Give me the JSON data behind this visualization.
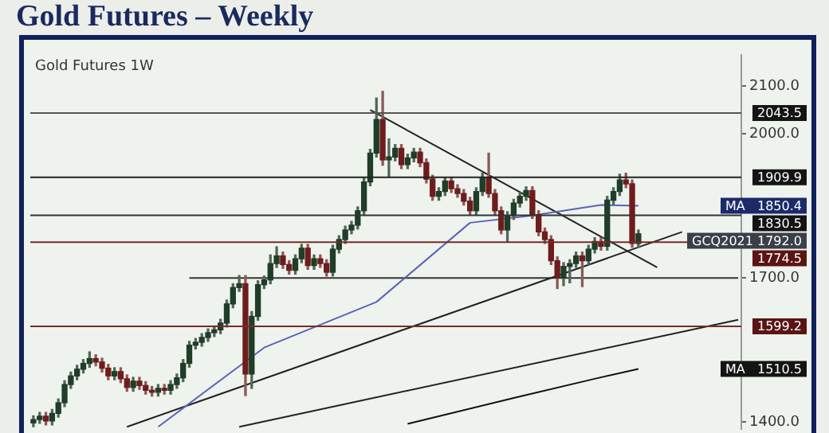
{
  "chart_data": {
    "type": "candlestick",
    "title": "Gold Futures – Weekly",
    "subtitle": "Gold Futures 1W",
    "categories": [
      null,
      null,
      null,
      null,
      null,
      null,
      null,
      null,
      null,
      null,
      null,
      null,
      null,
      null,
      null,
      null,
      null,
      null,
      null,
      null,
      null,
      null,
      null,
      null,
      null,
      null,
      null,
      null,
      null,
      null,
      null,
      null,
      null,
      null,
      null,
      null,
      null,
      null,
      null,
      null,
      null,
      null,
      null,
      null,
      null,
      null,
      null,
      null,
      null,
      null,
      null,
      null,
      null,
      null,
      null,
      null,
      null,
      null,
      null,
      null,
      null,
      null,
      null,
      null,
      null,
      null,
      null,
      null,
      null,
      null,
      null,
      null,
      null,
      null,
      null,
      null,
      null,
      null,
      null,
      null,
      null,
      null,
      null,
      null,
      null,
      null,
      null,
      null,
      null,
      null,
      null,
      null,
      null,
      null,
      null,
      null,
      null,
      null,
      null,
      null,
      null,
      null,
      null,
      null,
      null,
      null,
      null,
      null,
      null,
      null,
      null,
      null,
      null,
      null
    ],
    "ohlc": [
      [
        1398,
        1413,
        1390,
        1405
      ],
      [
        1405,
        1420,
        1397,
        1412
      ],
      [
        1412,
        1420,
        1394,
        1402
      ],
      [
        1402,
        1426,
        1394,
        1418
      ],
      [
        1418,
        1448,
        1410,
        1440
      ],
      [
        1440,
        1486,
        1432,
        1478
      ],
      [
        1478,
        1504,
        1470,
        1496
      ],
      [
        1496,
        1518,
        1488,
        1510
      ],
      [
        1510,
        1530,
        1502,
        1522
      ],
      [
        1522,
        1546,
        1514,
        1532
      ],
      [
        1532,
        1540,
        1517,
        1525
      ],
      [
        1525,
        1533,
        1504,
        1512
      ],
      [
        1512,
        1520,
        1488,
        1496
      ],
      [
        1496,
        1513,
        1488,
        1505
      ],
      [
        1505,
        1513,
        1482,
        1490
      ],
      [
        1490,
        1498,
        1464,
        1472
      ],
      [
        1472,
        1493,
        1464,
        1485
      ],
      [
        1485,
        1493,
        1468,
        1476
      ],
      [
        1476,
        1484,
        1458,
        1466
      ],
      [
        1466,
        1474,
        1454,
        1462
      ],
      [
        1462,
        1478,
        1454,
        1470
      ],
      [
        1470,
        1478,
        1458,
        1466
      ],
      [
        1466,
        1486,
        1458,
        1478
      ],
      [
        1478,
        1500,
        1470,
        1492
      ],
      [
        1492,
        1530,
        1484,
        1522
      ],
      [
        1522,
        1568,
        1514,
        1560
      ],
      [
        1560,
        1574,
        1552,
        1566
      ],
      [
        1566,
        1584,
        1558,
        1576
      ],
      [
        1576,
        1594,
        1568,
        1586
      ],
      [
        1586,
        1600,
        1578,
        1592
      ],
      [
        1592,
        1614,
        1584,
        1606
      ],
      [
        1606,
        1654,
        1598,
        1646
      ],
      [
        1646,
        1688,
        1638,
        1680
      ],
      [
        1680,
        1705,
        1672,
        1688
      ],
      [
        1688,
        1705,
        1455,
        1500
      ],
      [
        1500,
        1630,
        1470,
        1620
      ],
      [
        1620,
        1694,
        1612,
        1686
      ],
      [
        1686,
        1704,
        1678,
        1696
      ],
      [
        1696,
        1748,
        1688,
        1730
      ],
      [
        1730,
        1765,
        1722,
        1746
      ],
      [
        1746,
        1754,
        1720,
        1728
      ],
      [
        1728,
        1736,
        1708,
        1716
      ],
      [
        1716,
        1748,
        1708,
        1740
      ],
      [
        1740,
        1770,
        1732,
        1762
      ],
      [
        1762,
        1770,
        1718,
        1726
      ],
      [
        1726,
        1748,
        1718,
        1740
      ],
      [
        1740,
        1748,
        1722,
        1730
      ],
      [
        1730,
        1738,
        1704,
        1712
      ],
      [
        1712,
        1768,
        1704,
        1760
      ],
      [
        1760,
        1788,
        1752,
        1780
      ],
      [
        1780,
        1808,
        1772,
        1800
      ],
      [
        1800,
        1818,
        1792,
        1810
      ],
      [
        1810,
        1848,
        1802,
        1840
      ],
      [
        1840,
        1908,
        1832,
        1900
      ],
      [
        1900,
        1968,
        1892,
        1960
      ],
      [
        1960,
        2075,
        1952,
        2030
      ],
      [
        2030,
        2089,
        1935,
        1946
      ],
      [
        1946,
        1990,
        1910,
        1952
      ],
      [
        1952,
        1978,
        1944,
        1970
      ],
      [
        1970,
        1978,
        1928,
        1936
      ],
      [
        1936,
        1958,
        1928,
        1950
      ],
      [
        1950,
        1970,
        1942,
        1962
      ],
      [
        1962,
        1970,
        1932,
        1940
      ],
      [
        1940,
        1948,
        1898,
        1906
      ],
      [
        1906,
        1914,
        1862,
        1870
      ],
      [
        1870,
        1888,
        1862,
        1880
      ],
      [
        1880,
        1910,
        1872,
        1902
      ],
      [
        1902,
        1910,
        1878,
        1886
      ],
      [
        1886,
        1894,
        1868,
        1876
      ],
      [
        1876,
        1884,
        1852,
        1860
      ],
      [
        1860,
        1868,
        1832,
        1840
      ],
      [
        1840,
        1888,
        1832,
        1880
      ],
      [
        1880,
        1918,
        1872,
        1910
      ],
      [
        1910,
        1960,
        1868,
        1876
      ],
      [
        1876,
        1884,
        1832,
        1840
      ],
      [
        1840,
        1848,
        1792,
        1800
      ],
      [
        1800,
        1838,
        1776,
        1830
      ],
      [
        1830,
        1864,
        1822,
        1856
      ],
      [
        1856,
        1878,
        1848,
        1870
      ],
      [
        1870,
        1890,
        1862,
        1882
      ],
      [
        1882,
        1890,
        1824,
        1832
      ],
      [
        1832,
        1840,
        1788,
        1796
      ],
      [
        1796,
        1804,
        1772,
        1780
      ],
      [
        1780,
        1788,
        1728,
        1736
      ],
      [
        1736,
        1744,
        1678,
        1700
      ],
      [
        1700,
        1732,
        1684,
        1724
      ],
      [
        1724,
        1738,
        1690,
        1730
      ],
      [
        1730,
        1754,
        1722,
        1746
      ],
      [
        1746,
        1754,
        1682,
        1736
      ],
      [
        1736,
        1768,
        1728,
        1760
      ],
      [
        1760,
        1784,
        1752,
        1776
      ],
      [
        1776,
        1784,
        1758,
        1766
      ],
      [
        1766,
        1870,
        1758,
        1862
      ],
      [
        1862,
        1888,
        1854,
        1880
      ],
      [
        1880,
        1916,
        1872,
        1904
      ],
      [
        1904,
        1918,
        1888,
        1896
      ],
      [
        1896,
        1904,
        1764,
        1772
      ],
      [
        1772,
        1800,
        1764,
        1792
      ],
      null,
      null,
      null,
      null,
      null,
      null,
      null,
      null,
      null,
      null,
      null,
      null,
      null,
      null,
      null,
      null
    ],
    "series": [
      {
        "type": "line",
        "name": "MA",
        "color": "#5a64b4",
        "value_labels": [
          null,
          null,
          null,
          null,
          null,
          null,
          null,
          null,
          null,
          null,
          null,
          null,
          null,
          null,
          null,
          null,
          null,
          null,
          null,
          null,
          null,
          null,
          null,
          null,
          null,
          null,
          null,
          null,
          null,
          null,
          null,
          null,
          null,
          null,
          null,
          null,
          null,
          null,
          null,
          null,
          null,
          null,
          null,
          null,
          null,
          null,
          null,
          null,
          null,
          null,
          null,
          null,
          null,
          null,
          null,
          null,
          null,
          null,
          null,
          null,
          null,
          null,
          null,
          null,
          null,
          null,
          null,
          null,
          null,
          null,
          null,
          null,
          null,
          null,
          null,
          null,
          null,
          null,
          null,
          null,
          null,
          null,
          null,
          null,
          null,
          null,
          null,
          null,
          null,
          null,
          null,
          null,
          null,
          null,
          null,
          null,
          null,
          "1850.4",
          null,
          null,
          null,
          null,
          null,
          null,
          null,
          null,
          null,
          null,
          null,
          null,
          null,
          null,
          null,
          null
        ],
        "values": [
          null,
          null,
          null,
          null,
          null,
          null,
          null,
          null,
          null,
          null,
          null,
          null,
          null,
          null,
          null,
          null,
          null,
          null,
          null,
          null,
          1390,
          null,
          null,
          null,
          null,
          null,
          null,
          null,
          null,
          null,
          null,
          null,
          null,
          null,
          null,
          null,
          null,
          1555,
          null,
          null,
          null,
          null,
          null,
          null,
          null,
          null,
          null,
          null,
          null,
          null,
          null,
          null,
          null,
          null,
          null,
          1650,
          null,
          null,
          null,
          null,
          null,
          null,
          null,
          null,
          null,
          null,
          null,
          null,
          null,
          null,
          1815,
          null,
          null,
          null,
          null,
          null,
          null,
          null,
          null,
          null,
          1830,
          null,
          null,
          null,
          null,
          null,
          null,
          null,
          null,
          null,
          null,
          1852,
          null,
          null,
          null,
          null,
          null,
          1850.4,
          null,
          null,
          null,
          null,
          null,
          null,
          null,
          null,
          null,
          null,
          null,
          null,
          null,
          null,
          null,
          null
        ]
      },
      {
        "type": "line",
        "name": "MA",
        "color": "#111111",
        "value_labels": [
          null,
          null,
          null,
          null,
          null,
          null,
          null,
          null,
          null,
          null,
          null,
          null,
          null,
          null,
          null,
          null,
          null,
          null,
          null,
          null,
          null,
          null,
          null,
          null,
          null,
          null,
          null,
          null,
          null,
          null,
          null,
          null,
          null,
          null,
          null,
          null,
          null,
          null,
          null,
          null,
          null,
          null,
          null,
          null,
          null,
          null,
          null,
          null,
          null,
          null,
          null,
          null,
          null,
          null,
          null,
          null,
          null,
          null,
          null,
          null,
          null,
          null,
          null,
          null,
          null,
          null,
          null,
          null,
          null,
          null,
          null,
          null,
          null,
          null,
          null,
          null,
          null,
          null,
          null,
          null,
          null,
          null,
          null,
          null,
          null,
          null,
          null,
          null,
          null,
          null,
          null,
          null,
          null,
          null,
          null,
          null,
          null,
          "1510.5",
          null,
          null,
          null,
          null,
          null,
          null,
          null,
          null,
          null,
          null,
          null,
          null,
          null,
          null,
          null,
          null
        ],
        "values": [
          null,
          null,
          null,
          null,
          null,
          null,
          null,
          null,
          null,
          null,
          null,
          null,
          null,
          null,
          null,
          null,
          null,
          null,
          null,
          null,
          null,
          null,
          null,
          null,
          null,
          null,
          null,
          null,
          null,
          null,
          null,
          null,
          null,
          null,
          null,
          null,
          null,
          null,
          null,
          null,
          null,
          null,
          null,
          null,
          null,
          null,
          null,
          null,
          null,
          null,
          null,
          null,
          null,
          null,
          null,
          null,
          null,
          null,
          null,
          null,
          1396,
          null,
          null,
          null,
          null,
          null,
          null,
          null,
          null,
          null,
          null,
          null,
          null,
          null,
          null,
          null,
          null,
          1450,
          null,
          null,
          null,
          null,
          null,
          null,
          null,
          null,
          null,
          null,
          null,
          null,
          1490,
          null,
          null,
          null,
          null,
          null,
          null,
          1510.5,
          null,
          null,
          null,
          null,
          null,
          null,
          null,
          null,
          null,
          null,
          null,
          null,
          null,
          null,
          null,
          null
        ]
      },
      {
        "type": "line",
        "color": "#222222",
        "values": [
          null,
          null,
          null,
          null,
          null,
          null,
          null,
          null,
          null,
          null,
          null,
          null,
          null,
          null,
          null,
          null,
          null,
          null,
          null,
          null,
          null,
          null,
          null,
          null,
          null,
          null,
          null,
          null,
          null,
          null,
          null,
          null,
          null,
          null,
          null,
          null,
          null,
          null,
          null,
          null,
          null,
          null,
          null,
          null,
          null,
          null,
          null,
          null,
          null,
          null,
          null,
          null,
          null,
          null,
          2050,
          null,
          null,
          null,
          null,
          null,
          null,
          null,
          null,
          null,
          null,
          null,
          null,
          null,
          null,
          null,
          null,
          null,
          null,
          null,
          null,
          null,
          null,
          null,
          null,
          null,
          null,
          null,
          null,
          null,
          null,
          null,
          null,
          null,
          null,
          null,
          null,
          null,
          null,
          null,
          null,
          null,
          null,
          null,
          null,
          null,
          1722,
          null,
          null,
          null,
          null,
          null,
          null,
          null,
          null,
          null,
          null,
          null,
          null,
          null
        ]
      },
      {
        "type": "line",
        "color": "#222222",
        "values": [
          null,
          null,
          null,
          null,
          null,
          null,
          null,
          null,
          null,
          null,
          null,
          null,
          null,
          null,
          null,
          1390,
          null,
          null,
          null,
          null,
          null,
          null,
          null,
          null,
          null,
          null,
          null,
          null,
          null,
          null,
          null,
          null,
          null,
          null,
          null,
          null,
          null,
          null,
          null,
          null,
          null,
          null,
          null,
          null,
          null,
          null,
          null,
          null,
          null,
          null,
          null,
          null,
          null,
          null,
          null,
          null,
          null,
          null,
          null,
          null,
          null,
          null,
          null,
          null,
          null,
          null,
          null,
          null,
          null,
          null,
          null,
          null,
          null,
          null,
          null,
          null,
          null,
          null,
          null,
          null,
          null,
          null,
          null,
          null,
          null,
          null,
          null,
          null,
          null,
          null,
          null,
          null,
          null,
          null,
          null,
          null,
          null,
          null,
          null,
          null,
          null,
          null,
          null,
          null,
          1796,
          null,
          null,
          null,
          null,
          null,
          null,
          null,
          null,
          null
        ]
      },
      {
        "type": "line",
        "color": "#222222",
        "values": [
          null,
          null,
          null,
          null,
          null,
          null,
          null,
          null,
          null,
          null,
          null,
          null,
          null,
          null,
          null,
          null,
          null,
          null,
          null,
          null,
          null,
          null,
          null,
          null,
          null,
          null,
          null,
          null,
          null,
          null,
          null,
          null,
          null,
          1390,
          null,
          null,
          null,
          null,
          null,
          null,
          null,
          null,
          null,
          null,
          null,
          null,
          null,
          null,
          null,
          null,
          null,
          null,
          null,
          null,
          null,
          null,
          null,
          null,
          null,
          null,
          null,
          null,
          null,
          null,
          null,
          null,
          null,
          null,
          null,
          null,
          null,
          null,
          null,
          null,
          null,
          null,
          null,
          null,
          null,
          null,
          null,
          null,
          null,
          null,
          null,
          null,
          null,
          null,
          null,
          null,
          null,
          null,
          null,
          null,
          null,
          null,
          null,
          null,
          null,
          null,
          null,
          null,
          null,
          null,
          null,
          null,
          null,
          null,
          null,
          null,
          null,
          null,
          null,
          1613
        ]
      },
      {
        "type": "line",
        "color": "#333333",
        "values": [
          null,
          null,
          null,
          null,
          null,
          null,
          null,
          null,
          null,
          null,
          null,
          null,
          null,
          null,
          null,
          null,
          null,
          null,
          null,
          null,
          null,
          null,
          null,
          null,
          null,
          1700,
          null,
          null,
          null,
          null,
          null,
          null,
          null,
          null,
          null,
          null,
          null,
          null,
          null,
          null,
          null,
          null,
          null,
          null,
          null,
          null,
          null,
          null,
          null,
          null,
          null,
          null,
          null,
          null,
          null,
          null,
          null,
          null,
          null,
          null,
          null,
          null,
          null,
          null,
          null,
          null,
          null,
          null,
          null,
          null,
          null,
          null,
          null,
          null,
          null,
          null,
          null,
          null,
          null,
          null,
          null,
          null,
          null,
          null,
          null,
          null,
          null,
          null,
          null,
          null,
          null,
          null,
          null,
          null,
          null,
          null,
          null,
          null,
          null,
          null,
          null,
          null,
          null,
          null,
          null,
          null,
          null,
          null,
          null,
          null,
          null,
          null,
          null,
          1700
        ]
      }
    ],
    "ylim": [
      1385,
      2165
    ],
    "yticks": [
      {
        "value": 1400,
        "label": "1400.0"
      },
      {
        "value": 1700,
        "label": "1700.0"
      },
      {
        "value": 2000,
        "label": "2000.0"
      },
      {
        "value": 2100,
        "label": "2100.0"
      }
    ],
    "tick_labels": "y",
    "marker": "none",
    "ref_lines": [
      {
        "axis": "y",
        "value": 2043.5,
        "label": "2043.5",
        "color": "#555555"
      },
      {
        "axis": "y",
        "value": 1909.9,
        "label": "1909.9",
        "color": "#222222"
      },
      {
        "axis": "y",
        "value": 1830.5,
        "label": "1830.5",
        "color": "#333333"
      },
      {
        "axis": "y",
        "value": 1774.5,
        "label": "1774.5",
        "color": "#7a2a2a"
      },
      {
        "axis": "y",
        "value": 1599.2,
        "label": "1599.2",
        "color": "#7a2a2a"
      }
    ],
    "annotations": [
      "GCQ2021 1792.0"
    ]
  }
}
